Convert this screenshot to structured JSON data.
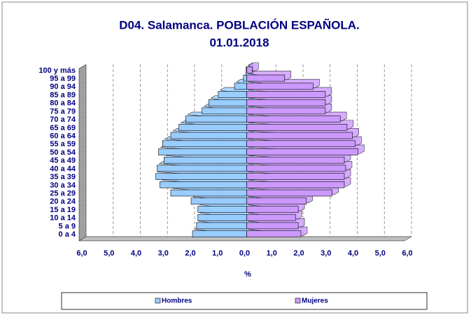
{
  "chart_data": {
    "type": "pyramid",
    "title": "D04. Salamanca. POBLACIÓN ESPAÑOLA.",
    "subtitle": "01.01.2018",
    "x_label": "%",
    "categories": [
      "0 a 4",
      "5 a 9",
      "10 a 14",
      "15 a 19",
      "20 a 24",
      "25 a 29",
      "30 a 34",
      "35 a 39",
      "40 a 44",
      "45 a 49",
      "50 a 54",
      "55 a 59",
      "60 a 64",
      "65 a 69",
      "70 a 74",
      "75 a 79",
      "80 a 84",
      "85 a 89",
      "90 a 94",
      "95 a 99",
      "100 y más"
    ],
    "series": [
      {
        "name": "Hombres",
        "color": "#99ccff",
        "side": "left",
        "values": [
          2.0,
          1.85,
          1.8,
          1.8,
          2.05,
          2.8,
          3.2,
          3.35,
          3.3,
          3.05,
          3.25,
          3.1,
          2.8,
          2.5,
          2.25,
          1.65,
          1.4,
          1.05,
          0.45,
          0.12,
          0.02
        ]
      },
      {
        "name": "Mujeres",
        "color": "#cc99ff",
        "side": "right",
        "values": [
          2.0,
          1.9,
          1.8,
          1.9,
          2.2,
          3.15,
          3.6,
          3.6,
          3.65,
          3.6,
          4.1,
          4.0,
          3.9,
          3.7,
          3.45,
          2.9,
          2.9,
          2.9,
          2.45,
          1.4,
          0.2
        ]
      }
    ],
    "xlim": [
      -6,
      6
    ],
    "xticks": [
      {
        "value": -6,
        "label": "6,0"
      },
      {
        "value": -5,
        "label": "5,0"
      },
      {
        "value": -4,
        "label": "4,0"
      },
      {
        "value": -3,
        "label": "3,0"
      },
      {
        "value": -2,
        "label": "2,0"
      },
      {
        "value": -1,
        "label": "1,0"
      },
      {
        "value": 0,
        "label": "0,0"
      },
      {
        "value": 1,
        "label": "1,0"
      },
      {
        "value": 2,
        "label": "2,0"
      },
      {
        "value": 3,
        "label": "3,0"
      },
      {
        "value": 4,
        "label": "4,0"
      },
      {
        "value": 5,
        "label": "5,0"
      },
      {
        "value": 6,
        "label": "6,0"
      }
    ],
    "grid": true
  }
}
